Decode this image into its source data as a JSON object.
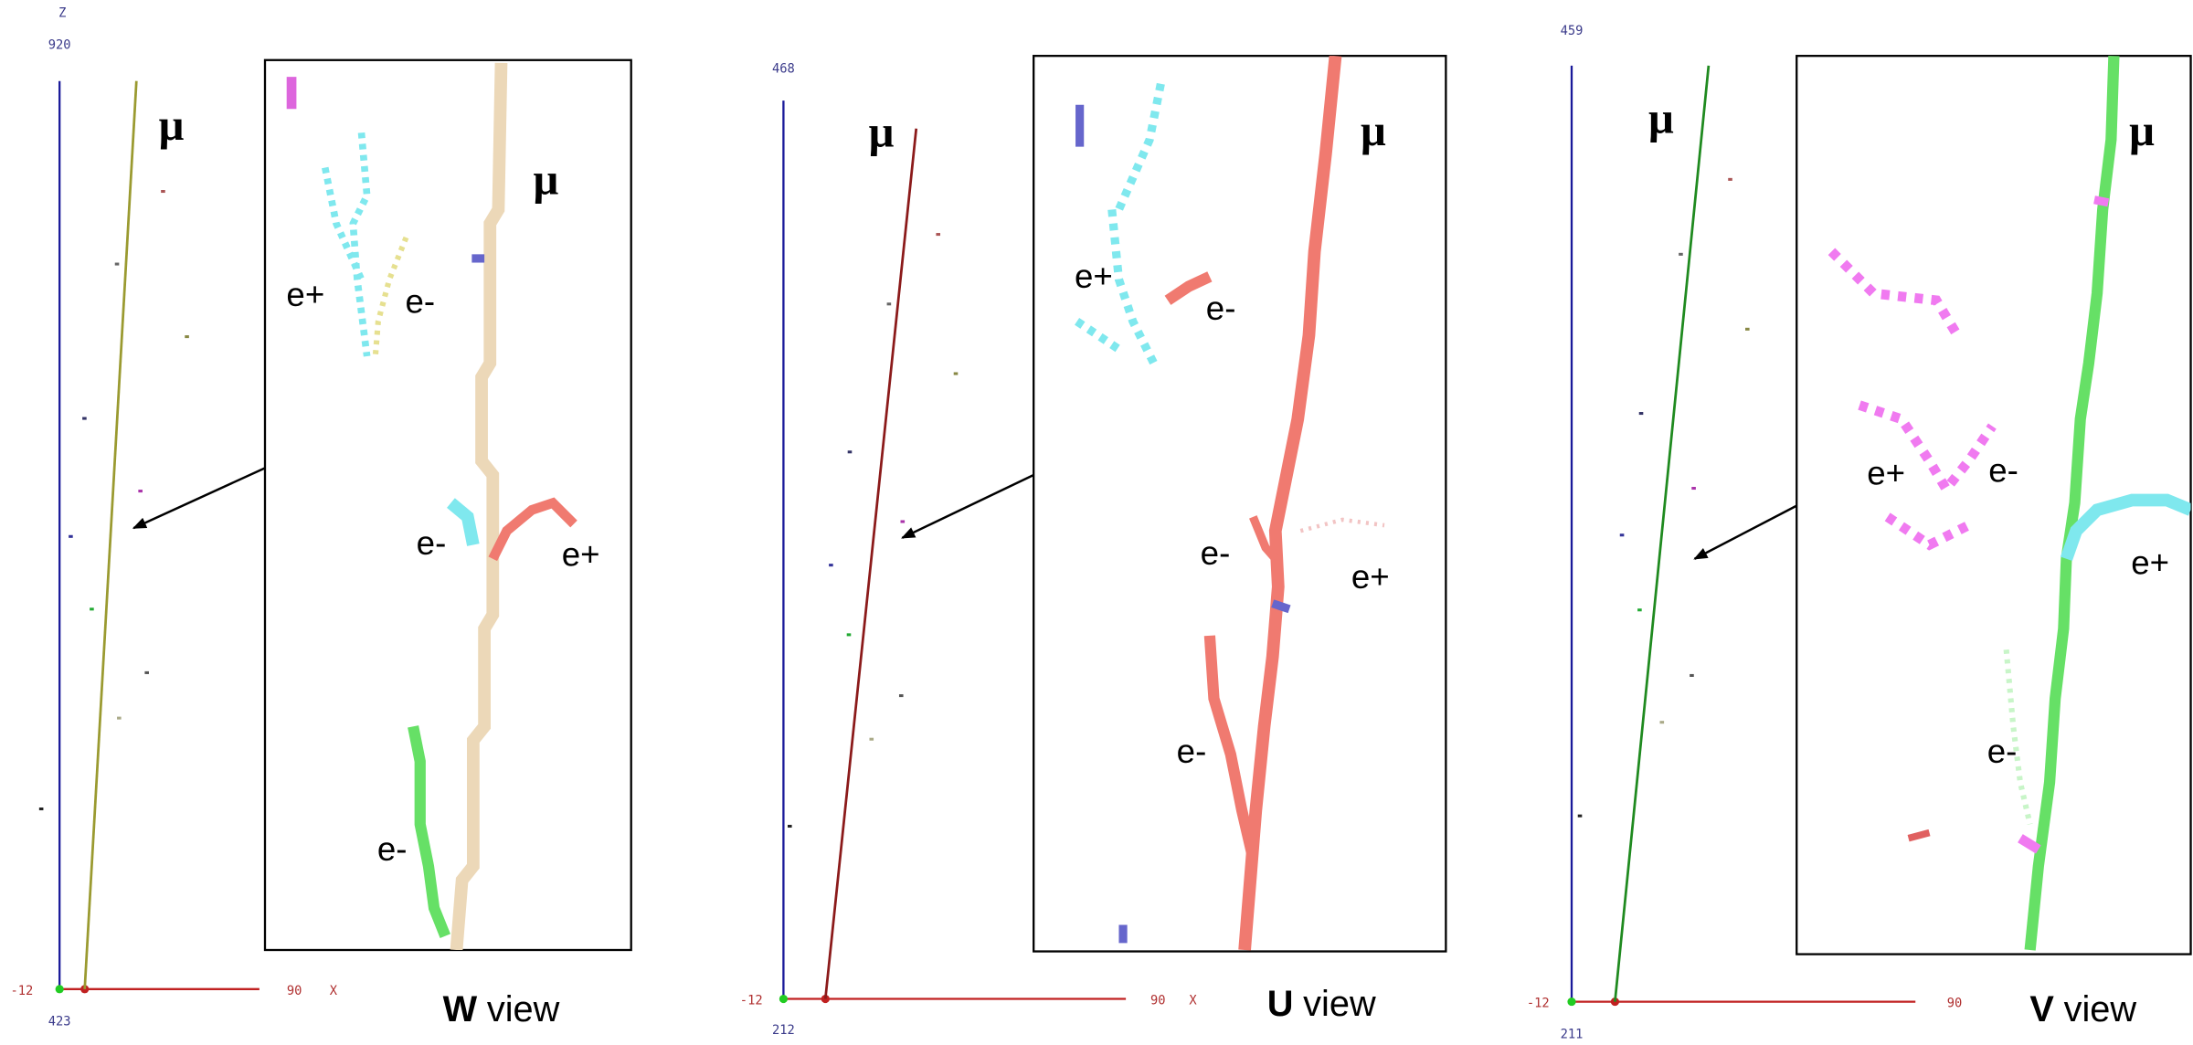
{
  "panels": [
    {
      "axis": {
        "z_label": "Z",
        "top": "920",
        "bottom": "423",
        "left": "-12",
        "right": "90",
        "x_label": "X"
      },
      "track_label": "μ",
      "inset_labels": [
        "μ",
        "e+",
        "e-",
        "e-",
        "e+",
        "e-"
      ],
      "view": {
        "letter": "W",
        "suffix": "view"
      }
    },
    {
      "axis": {
        "top": "468",
        "bottom": "212",
        "left": "-12",
        "right": "90",
        "x_label": "X"
      },
      "track_label": "μ",
      "inset_labels": [
        "μ",
        "e+",
        "e-",
        "e-",
        "e+",
        "e-"
      ],
      "view": {
        "letter": "U",
        "suffix": "view"
      }
    },
    {
      "axis": {
        "top": "459",
        "bottom": "211",
        "left": "-12",
        "right": "90"
      },
      "track_label": "μ",
      "inset_labels": [
        "μ",
        "e+",
        "e-",
        "e+",
        "e-"
      ],
      "view": {
        "letter": "V",
        "suffix": "view"
      }
    }
  ]
}
